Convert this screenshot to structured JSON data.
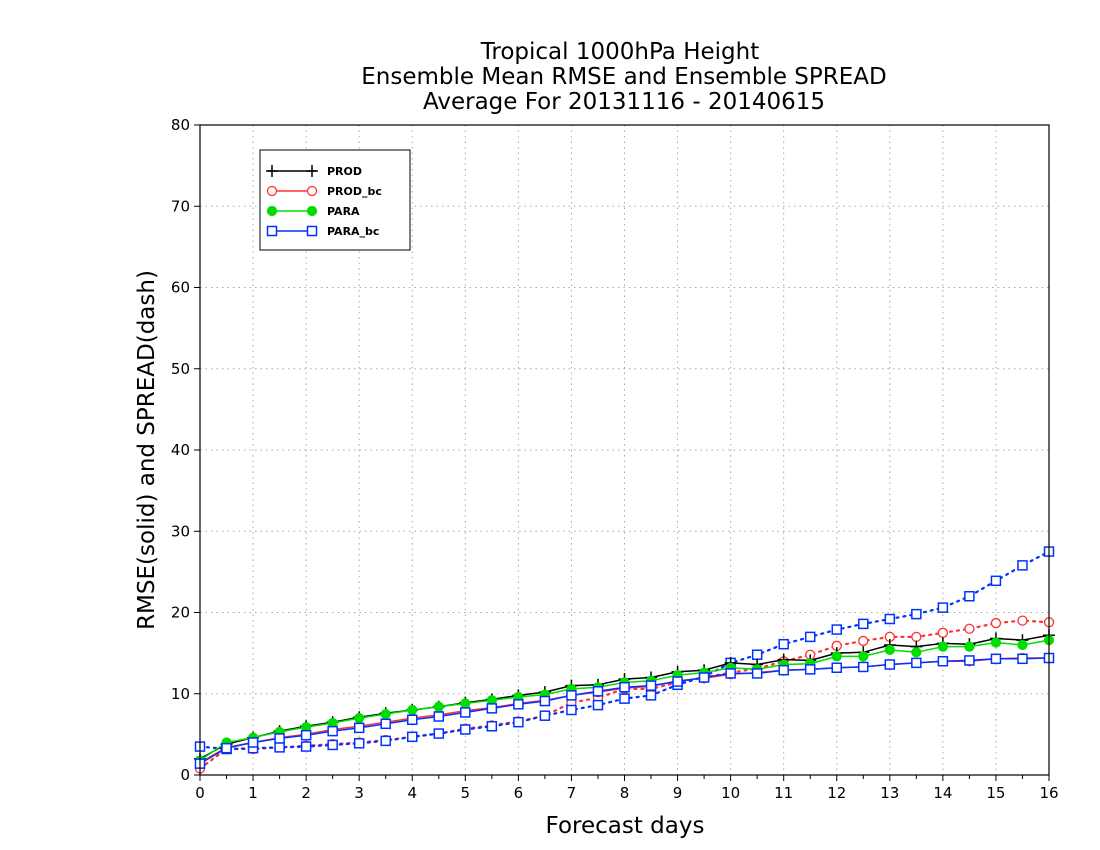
{
  "chart_data": {
    "type": "line",
    "title": [
      "Tropical 1000hPa Height",
      "Ensemble Mean RMSE and Ensemble SPREAD",
      "Average For 20131116 - 20140615"
    ],
    "xlabel": "Forecast days",
    "ylabel": "RMSE(solid) and SPREAD(dash)",
    "xlim": [
      0,
      16
    ],
    "ylim": [
      0,
      80
    ],
    "xticks": [
      "0",
      "1",
      "2",
      "3",
      "4",
      "5",
      "6",
      "7",
      "8",
      "9",
      "10",
      "11",
      "12",
      "13",
      "14",
      "15",
      "16"
    ],
    "yticks": [
      "0",
      "10",
      "20",
      "30",
      "40",
      "50",
      "60",
      "70",
      "80"
    ],
    "grid": true,
    "legend_position": "top-left",
    "x": [
      0,
      0.5,
      1,
      1.5,
      2,
      2.5,
      3,
      3.5,
      4,
      4.5,
      5,
      5.5,
      6,
      6.5,
      7,
      7.5,
      8,
      8.5,
      9,
      9.5,
      10,
      10.5,
      11,
      11.5,
      12,
      12.5,
      13,
      13.5,
      14,
      14.5,
      15,
      15.5,
      16
    ],
    "series": [
      {
        "name": "PROD",
        "color": "#000000",
        "marker": "plus",
        "rmse": [
          2.0,
          3.8,
          4.6,
          5.4,
          6.0,
          6.5,
          7.1,
          7.6,
          8.0,
          8.4,
          8.9,
          9.3,
          9.8,
          10.2,
          11.0,
          11.1,
          11.8,
          12.0,
          12.7,
          12.9,
          13.8,
          13.6,
          14.2,
          14.1,
          15.0,
          15.1,
          16.0,
          15.8,
          16.2,
          16.1,
          16.8,
          16.6,
          17.2
        ],
        "spread": null
      },
      {
        "name": "PROD_bc",
        "color": "#ff3030",
        "marker": "open-circle",
        "rmse": [
          1.5,
          3.4,
          4.0,
          4.6,
          5.0,
          5.6,
          6.0,
          6.5,
          7.0,
          7.4,
          7.9,
          8.3,
          8.8,
          9.2,
          9.8,
          10.2,
          10.7,
          10.9,
          11.6,
          11.9,
          12.4,
          12.6,
          12.9,
          13.0,
          13.2,
          13.3,
          13.6,
          13.8,
          14.0,
          14.0,
          14.3,
          14.4,
          14.4
        ],
        "spread": [
          0.8,
          3.2,
          3.2,
          3.4,
          3.6,
          3.8,
          4.0,
          4.3,
          4.7,
          5.1,
          5.7,
          6.1,
          6.6,
          7.3,
          8.9,
          9.5,
          10.6,
          10.6,
          11.4,
          12.0,
          12.6,
          13.1,
          14.0,
          14.8,
          15.9,
          16.5,
          17.0,
          17.0,
          17.5,
          18.0,
          18.7,
          19.0,
          18.8
        ]
      },
      {
        "name": "PARA",
        "color": "#00dd00",
        "marker": "filled-circle",
        "rmse": [
          1.8,
          4.0,
          4.6,
          5.3,
          5.9,
          6.4,
          7.0,
          7.5,
          8.0,
          8.4,
          8.8,
          9.2,
          9.6,
          9.9,
          10.6,
          10.8,
          11.4,
          11.6,
          12.3,
          12.6,
          13.2,
          13.0,
          13.6,
          13.7,
          14.6,
          14.6,
          15.4,
          15.1,
          15.8,
          15.8,
          16.3,
          16.0,
          16.6
        ]
      },
      {
        "name": "PARA_bc",
        "color": "#0033ff",
        "marker": "open-square",
        "rmse": [
          1.4,
          3.3,
          4.0,
          4.5,
          4.9,
          5.4,
          5.8,
          6.3,
          6.8,
          7.2,
          7.7,
          8.2,
          8.7,
          9.1,
          9.8,
          10.3,
          10.8,
          11.0,
          11.5,
          12.0,
          12.5,
          12.5,
          12.9,
          13.0,
          13.2,
          13.3,
          13.6,
          13.8,
          14.0,
          14.1,
          14.3,
          14.3,
          14.4
        ],
        "spread": [
          3.5,
          3.2,
          3.3,
          3.4,
          3.5,
          3.7,
          3.9,
          4.2,
          4.7,
          5.1,
          5.6,
          6.0,
          6.5,
          7.3,
          8.0,
          8.6,
          9.4,
          9.8,
          11.1,
          12.1,
          13.8,
          14.8,
          16.1,
          17.0,
          17.9,
          18.6,
          19.2,
          19.8,
          20.6,
          22.0,
          23.9,
          25.8,
          27.5
        ]
      }
    ]
  }
}
